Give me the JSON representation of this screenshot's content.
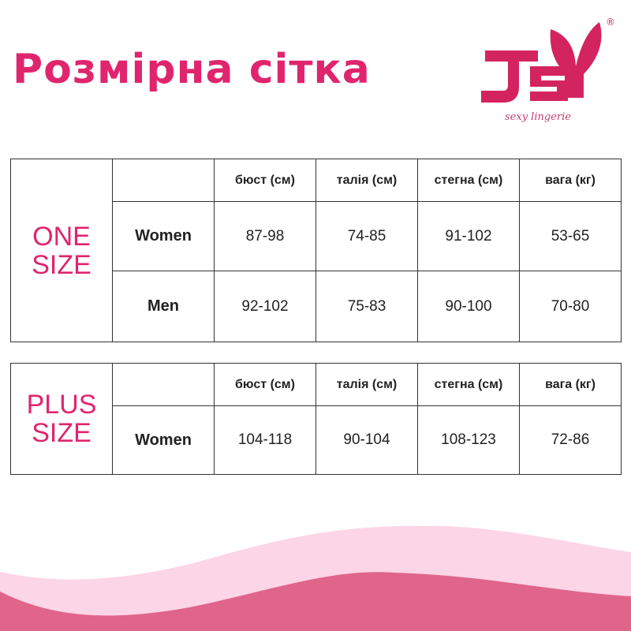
{
  "title": "Розмірна сітка",
  "logo": {
    "text": "JSY",
    "tagline": "sexy lingerie",
    "registered": "®"
  },
  "colors": {
    "accent": "#e0256e",
    "wave_light": "#fcd5e6",
    "wave_dark": "#e0658b"
  },
  "headers": [
    "бюст (см)",
    "талія (см)",
    "стегна (см)",
    "вага (кг)"
  ],
  "one_size": {
    "label_line1": "ONE",
    "label_line2": "SIZE",
    "rows": [
      {
        "group": "Women",
        "values": [
          "87-98",
          "74-85",
          "91-102",
          "53-65"
        ]
      },
      {
        "group": "Men",
        "values": [
          "92-102",
          "75-83",
          "90-100",
          "70-80"
        ]
      }
    ]
  },
  "plus_size": {
    "label_line1": "PLUS",
    "label_line2": "SIZE",
    "rows": [
      {
        "group": "Women",
        "values": [
          "104-118",
          "90-104",
          "108-123",
          "72-86"
        ]
      }
    ]
  }
}
